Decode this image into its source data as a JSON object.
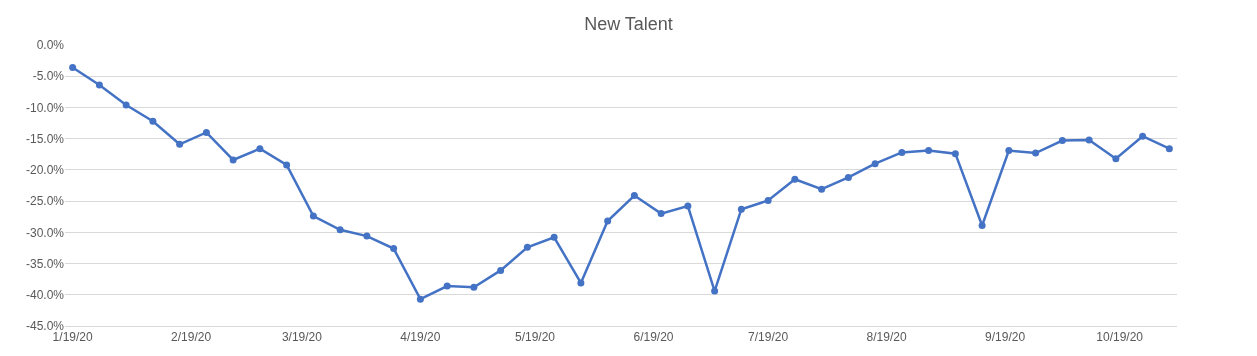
{
  "chart_data": {
    "type": "line",
    "title": "New Talent",
    "x": [
      "2020-01-19",
      "2020-01-26",
      "2020-02-02",
      "2020-02-09",
      "2020-02-16",
      "2020-02-23",
      "2020-03-01",
      "2020-03-08",
      "2020-03-15",
      "2020-03-22",
      "2020-03-29",
      "2020-04-05",
      "2020-04-12",
      "2020-04-19",
      "2020-04-26",
      "2020-05-03",
      "2020-05-10",
      "2020-05-17",
      "2020-05-24",
      "2020-05-31",
      "2020-06-07",
      "2020-06-14",
      "2020-06-21",
      "2020-06-28",
      "2020-07-05",
      "2020-07-12",
      "2020-07-19",
      "2020-07-26",
      "2020-08-02",
      "2020-08-09",
      "2020-08-16",
      "2020-08-23",
      "2020-08-30",
      "2020-09-06",
      "2020-09-13",
      "2020-09-20",
      "2020-09-27",
      "2020-10-04",
      "2020-10-11",
      "2020-10-18",
      "2020-10-25",
      "2020-11-01"
    ],
    "series": [
      {
        "color": "#4472c4",
        "values": [
          -3.6,
          -6.4,
          -9.6,
          -12.2,
          -15.9,
          -14.0,
          -18.4,
          -16.6,
          -19.2,
          -27.4,
          -29.6,
          -30.6,
          -32.6,
          -40.7,
          -38.6,
          -38.8,
          -36.1,
          -32.4,
          -30.8,
          -38.1,
          -28.2,
          -24.1,
          -27.0,
          -25.8,
          -39.4,
          -26.3,
          -24.9,
          -21.5,
          -23.1,
          -21.2,
          -19.0,
          -17.2,
          -16.9,
          -17.4,
          -28.9,
          -16.9,
          -17.3,
          -15.3,
          -15.2,
          -18.2,
          -14.6,
          -16.6
        ]
      }
    ],
    "xlim": [
      "2020-01-17",
      "2020-11-03"
    ],
    "xticks": [
      {
        "value": "2020-01-19",
        "label": "1/19/20"
      },
      {
        "value": "2020-02-19",
        "label": "2/19/20"
      },
      {
        "value": "2020-03-19",
        "label": "3/19/20"
      },
      {
        "value": "2020-04-19",
        "label": "4/19/20"
      },
      {
        "value": "2020-05-19",
        "label": "5/19/20"
      },
      {
        "value": "2020-06-19",
        "label": "6/19/20"
      },
      {
        "value": "2020-07-19",
        "label": "7/19/20"
      },
      {
        "value": "2020-08-19",
        "label": "8/19/20"
      },
      {
        "value": "2020-09-19",
        "label": "9/19/20"
      },
      {
        "value": "2020-10-19",
        "label": "10/19/20"
      }
    ],
    "ylim": [
      -45,
      0
    ],
    "yticks": [
      {
        "value": 0,
        "label": "0.0%"
      },
      {
        "value": -5,
        "label": "-5.0%"
      },
      {
        "value": -10,
        "label": "-10.0%"
      },
      {
        "value": -15,
        "label": "-15.0%"
      },
      {
        "value": -20,
        "label": "-20.0%"
      },
      {
        "value": -25,
        "label": "-25.0%"
      },
      {
        "value": -30,
        "label": "-30.0%"
      },
      {
        "value": -35,
        "label": "-35.0%"
      },
      {
        "value": -40,
        "label": "-40.0%"
      },
      {
        "value": -45,
        "label": "-45.0%"
      }
    ],
    "grid": "y",
    "marker": "circle",
    "line_style": "solid"
  }
}
